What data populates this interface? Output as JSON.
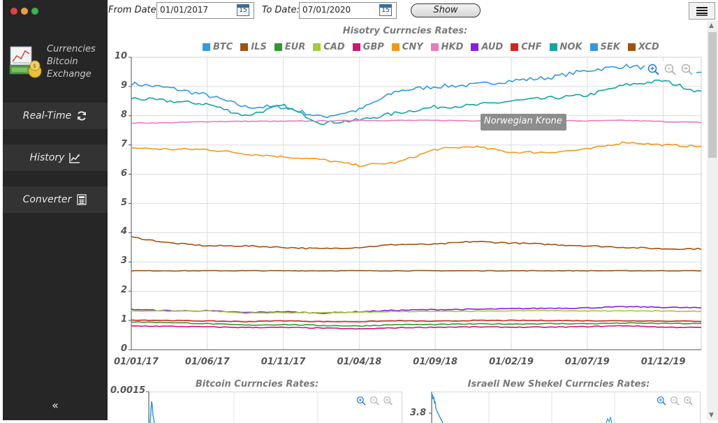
{
  "window": {
    "traffic_colors": [
      "#e0443e",
      "#e8a23a",
      "#3bb24b"
    ]
  },
  "sidebar": {
    "brand_lines": [
      "Currencies",
      "Bitcoin",
      "Exchange"
    ],
    "nav_items": [
      {
        "label": "Real-Time",
        "icon": "refresh-icon"
      },
      {
        "label": "History",
        "icon": "line-chart-icon"
      },
      {
        "label": "Converter",
        "icon": "calculator-icon"
      }
    ],
    "collapse_label": "«"
  },
  "toolbar": {
    "from_label": "From Date:",
    "from_value": "01/01/2017",
    "to_label": "To Date:",
    "to_value": "07/01/2020",
    "calendar_day": "15",
    "show_label": "Show"
  },
  "main_chart": {
    "title": "Hisotry Currncies Rates:",
    "tooltip": "Norwegian Krone",
    "legend": [
      {
        "name": "BTC",
        "color": "#2e9be0"
      },
      {
        "name": "ILS",
        "color": "#a0520e"
      },
      {
        "name": "EUR",
        "color": "#2e9a2e"
      },
      {
        "name": "CAD",
        "color": "#a6c93a"
      },
      {
        "name": "GBP",
        "color": "#d0157a"
      },
      {
        "name": "CNY",
        "color": "#f09a1c"
      },
      {
        "name": "HKD",
        "color": "#e77bc1"
      },
      {
        "name": "AUD",
        "color": "#8c1ce0"
      },
      {
        "name": "CHF",
        "color": "#d9231c"
      },
      {
        "name": "NOK",
        "color": "#13a5a0"
      },
      {
        "name": "SEK",
        "color": "#2e9be0"
      },
      {
        "name": "XCD",
        "color": "#a0520e"
      }
    ]
  },
  "chart_data": [
    {
      "type": "line",
      "title": "Hisotry Currncies Rates:",
      "x": [
        "01/01/17",
        "01/03/17",
        "01/06/17",
        "01/08/17",
        "01/11/17",
        "01/01/18",
        "01/04/18",
        "01/06/18",
        "01/09/18",
        "01/11/18",
        "01/02/19",
        "01/04/19",
        "01/07/19",
        "01/09/19",
        "01/12/19",
        "01/01/20"
      ],
      "x_ticks": [
        "01/01/17",
        "01/06/17",
        "01/11/17",
        "01/04/18",
        "01/09/18",
        "01/02/19",
        "01/07/19",
        "01/12/19"
      ],
      "y_ticks": [
        "0",
        "1",
        "2",
        "3",
        "4",
        "5",
        "6",
        "7",
        "8",
        "9",
        "10"
      ],
      "ylim": [
        0,
        10
      ],
      "grid": true,
      "legend_position": "top",
      "series": [
        {
          "name": "SEK",
          "color": "#2e9be0",
          "values": [
            9.1,
            8.95,
            8.7,
            8.3,
            8.3,
            7.95,
            8.2,
            8.85,
            9.0,
            9.05,
            9.2,
            9.3,
            9.55,
            9.7,
            9.6,
            9.45
          ]
        },
        {
          "name": "NOK",
          "color": "#13a5a0",
          "values": [
            8.6,
            8.5,
            8.4,
            8.0,
            8.35,
            7.75,
            7.85,
            8.1,
            8.3,
            8.35,
            8.5,
            8.6,
            8.7,
            9.05,
            9.2,
            8.8
          ]
        },
        {
          "name": "HKD",
          "color": "#e77bc1",
          "values": [
            7.75,
            7.76,
            7.8,
            7.81,
            7.81,
            7.82,
            7.84,
            7.84,
            7.84,
            7.83,
            7.84,
            7.84,
            7.82,
            7.84,
            7.8,
            7.77
          ]
        },
        {
          "name": "CNY",
          "color": "#f09a1c",
          "values": [
            6.9,
            6.85,
            6.85,
            6.7,
            6.6,
            6.5,
            6.3,
            6.4,
            6.85,
            6.95,
            6.75,
            6.75,
            6.85,
            7.1,
            7.0,
            6.95
          ]
        },
        {
          "name": "ILS",
          "color": "#a0520e",
          "values": [
            3.85,
            3.65,
            3.55,
            3.55,
            3.5,
            3.45,
            3.5,
            3.6,
            3.6,
            3.7,
            3.65,
            3.6,
            3.55,
            3.5,
            3.45,
            3.45
          ]
        },
        {
          "name": "XCD",
          "color": "#a0520e",
          "values": [
            2.7,
            2.7,
            2.7,
            2.7,
            2.7,
            2.7,
            2.7,
            2.7,
            2.7,
            2.7,
            2.7,
            2.7,
            2.7,
            2.7,
            2.7,
            2.7
          ]
        },
        {
          "name": "AUD",
          "color": "#8c1ce0",
          "values": [
            1.38,
            1.33,
            1.33,
            1.27,
            1.3,
            1.25,
            1.3,
            1.35,
            1.37,
            1.38,
            1.4,
            1.42,
            1.43,
            1.47,
            1.45,
            1.43
          ]
        },
        {
          "name": "CAD",
          "color": "#a6c93a",
          "values": [
            1.33,
            1.32,
            1.33,
            1.25,
            1.27,
            1.26,
            1.28,
            1.3,
            1.31,
            1.32,
            1.33,
            1.34,
            1.32,
            1.33,
            1.32,
            1.31
          ]
        },
        {
          "name": "CHF",
          "color": "#d9231c",
          "values": [
            1.02,
            1.0,
            0.98,
            0.96,
            0.99,
            0.96,
            0.96,
            0.99,
            0.97,
            1.0,
            1.0,
            1.0,
            0.99,
            0.99,
            0.98,
            0.97
          ]
        },
        {
          "name": "EUR",
          "color": "#2e9a2e",
          "values": [
            0.95,
            0.93,
            0.89,
            0.84,
            0.86,
            0.83,
            0.81,
            0.86,
            0.86,
            0.88,
            0.88,
            0.89,
            0.89,
            0.91,
            0.9,
            0.89
          ]
        },
        {
          "name": "GBP",
          "color": "#d0157a",
          "values": [
            0.81,
            0.8,
            0.78,
            0.76,
            0.76,
            0.74,
            0.71,
            0.75,
            0.77,
            0.78,
            0.77,
            0.77,
            0.79,
            0.82,
            0.77,
            0.76
          ]
        }
      ]
    },
    {
      "type": "line",
      "title": "Bitcoin Currncies Rates:",
      "y_ticks": [
        "0.0015"
      ],
      "series": [
        {
          "name": "BTC",
          "color": "#2e9be0"
        }
      ]
    },
    {
      "type": "line",
      "title": "Israeli New Shekel Currncies Rates:",
      "y_ticks": [
        "3.8"
      ],
      "series": [
        {
          "name": "ILS",
          "color": "#2e9be0"
        }
      ]
    }
  ],
  "small_charts": {
    "btc_title": "Bitcoin Currncies Rates:",
    "ils_title": "Israeli New Shekel Currncies Rates:"
  }
}
